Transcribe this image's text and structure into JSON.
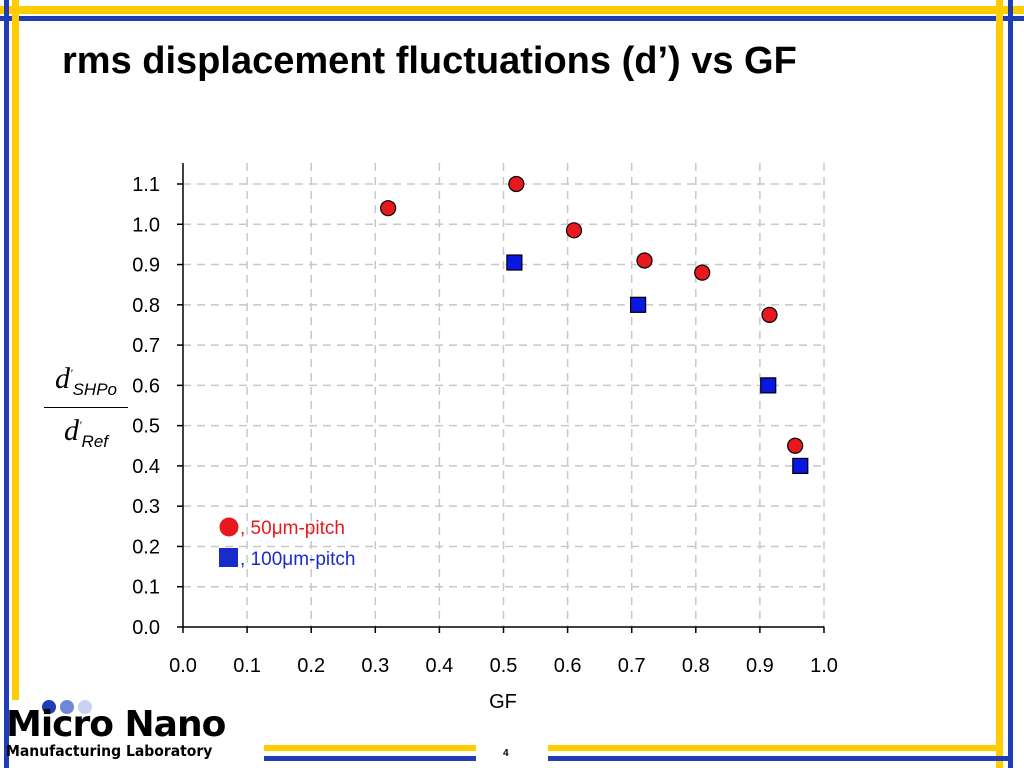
{
  "slide": {
    "title": "rms displacement fluctuations (d’) vs GF",
    "page_number": "4",
    "logo_line1": "Micro Nano",
    "logo_line2": "Manufacturing Laboratory",
    "colors": {
      "yellow": "#FFCC00",
      "blue": "#1F3DB5",
      "red_marker": "#E8191E",
      "blue_marker": "#0A17E0",
      "legend_red": "#E8191E",
      "legend_blue": "#1A2BCC"
    }
  },
  "ylabel": {
    "num_main": "d",
    "num_sub": "SHPo",
    "den_main": "d",
    "den_sub": "Ref",
    "prime": "'"
  },
  "chart_data": {
    "type": "scatter",
    "title": "",
    "xlabel": "GF",
    "ylabel": "d'SHPo / d'Ref",
    "xlim": [
      0.0,
      1.0
    ],
    "ylim": [
      0.0,
      1.1
    ],
    "xticks": [
      "0.0",
      "0.1",
      "0.2",
      "0.3",
      "0.4",
      "0.5",
      "0.6",
      "0.7",
      "0.8",
      "0.9",
      "1.0"
    ],
    "yticks": [
      "0.0",
      "0.1",
      "0.2",
      "0.3",
      "0.4",
      "0.5",
      "0.6",
      "0.7",
      "0.8",
      "0.9",
      "1.0",
      "1.1"
    ],
    "grid": true,
    "legend_position": "bottom-left",
    "series": [
      {
        "name": ", 50μm-pitch",
        "marker": "circle",
        "color": "#E8191E",
        "points": [
          {
            "x": 0.32,
            "y": 1.04
          },
          {
            "x": 0.52,
            "y": 1.1
          },
          {
            "x": 0.61,
            "y": 0.985
          },
          {
            "x": 0.72,
            "y": 0.91
          },
          {
            "x": 0.81,
            "y": 0.88
          },
          {
            "x": 0.915,
            "y": 0.775
          },
          {
            "x": 0.955,
            "y": 0.45
          }
        ]
      },
      {
        "name": ", 100μm-pitch",
        "marker": "square",
        "color": "#0A17E0",
        "points": [
          {
            "x": 0.517,
            "y": 0.905
          },
          {
            "x": 0.71,
            "y": 0.8
          },
          {
            "x": 0.913,
            "y": 0.6
          },
          {
            "x": 0.963,
            "y": 0.4
          }
        ]
      }
    ]
  }
}
